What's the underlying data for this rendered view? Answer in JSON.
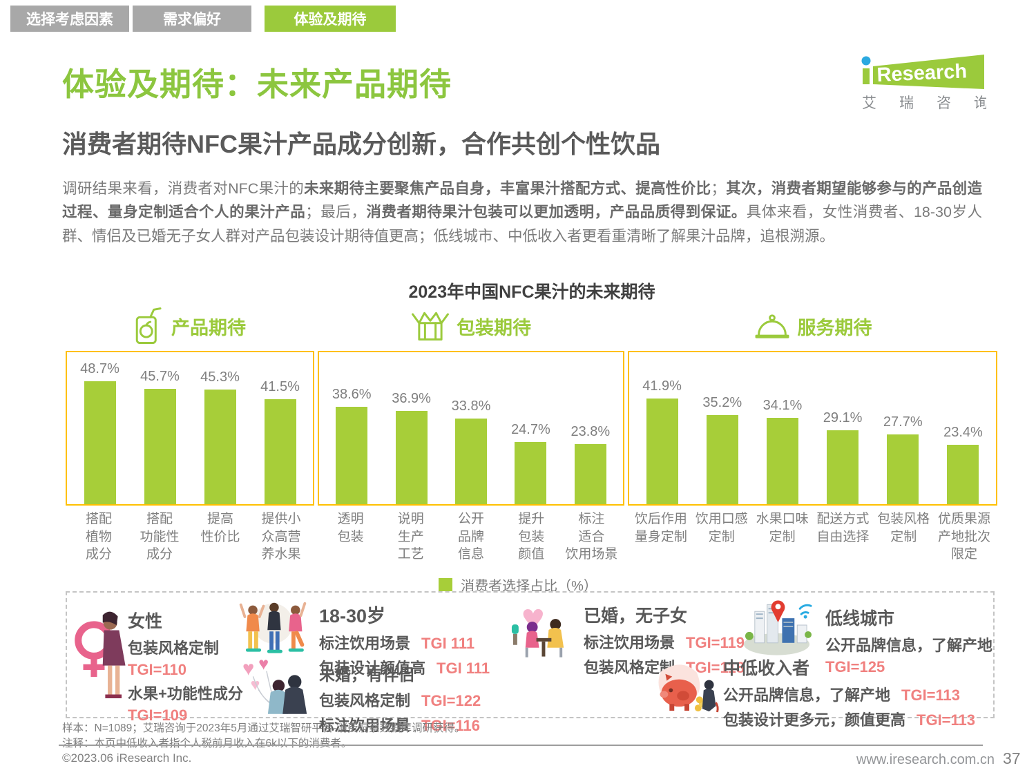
{
  "tabs": [
    {
      "label": "选择考虑因素",
      "active": false
    },
    {
      "label": "需求偏好",
      "active": false
    },
    {
      "label": "体验及期待",
      "active": true
    }
  ],
  "logo": {
    "brand_en": "Research",
    "brand_cn": "艾瑞咨询"
  },
  "header": {
    "title": "体验及期待：未来产品期待",
    "subtitle": "消费者期待NFC果汁产品成分创新，合作共创个性饮品"
  },
  "body": {
    "segments": [
      {
        "text": "调研结果来看，消费者对NFC果汁的",
        "bold": false
      },
      {
        "text": "未来期待主要聚焦产品自身，丰富果汁搭配方式、提高性价比",
        "bold": true
      },
      {
        "text": "；",
        "bold": false
      },
      {
        "text": "其次，消费者期望能够参与的产品创造过程、量身定制适合个人的果汁产品",
        "bold": true
      },
      {
        "text": "；最后，",
        "bold": false
      },
      {
        "text": "消费者期待果汁包装可以更加透明，产品品质得到保证。",
        "bold": true
      },
      {
        "text": "具体来看，女性消费者、18-30岁人群、情侣及已婚无子女人群对产品包装设计期待值更高；低线城市、中低收入者更看重清晰了解果汁品牌，追根溯源。",
        "bold": false
      }
    ]
  },
  "chart_data": {
    "type": "bar",
    "title": "2023年中国NFC果汁的未来期待",
    "legend": "消费者选择占比（%）",
    "unit": "%",
    "ylim": [
      0,
      60
    ],
    "grid": false,
    "bar_color": "#a7ce39",
    "groups": [
      {
        "name": "产品期待",
        "icon": "juice-box-icon",
        "categories": [
          "搭配\n植物\n成分",
          "搭配\n功能性\n成分",
          "提高\n性价比",
          "提供小\n众高营\n养水果"
        ],
        "values": [
          48.7,
          45.7,
          45.3,
          41.5
        ]
      },
      {
        "name": "包装期待",
        "icon": "open-box-icon",
        "categories": [
          "透明\n包装",
          "说明\n生产\n工艺",
          "公开\n品牌\n信息",
          "提升\n包装\n颜值",
          "标注\n适合\n饮用场景"
        ],
        "values": [
          38.6,
          36.9,
          33.8,
          24.7,
          23.8
        ]
      },
      {
        "name": "服务期待",
        "icon": "cloche-icon",
        "categories": [
          "饮后作用\n量身定制",
          "饮用口感\n定制",
          "水果口味\n定制",
          "配送方式\n自由选择",
          "包装风格\n定制",
          "优质果源\n产地批次\n限定"
        ],
        "values": [
          41.9,
          35.2,
          34.1,
          29.1,
          27.7,
          23.4
        ]
      }
    ]
  },
  "personas": {
    "female": {
      "title": "女性",
      "r1_label": "包装风格定制",
      "r1_tgi": "TGI=110",
      "r2_label": "水果+功能性成分",
      "r2_tgi": "TGI=109"
    },
    "age_18_30": {
      "title": "18-30岁",
      "r1_label": "标注饮用场景",
      "r1_tgi": "TGI 111",
      "r2_label": "包装设计颜值高",
      "r2_tgi": "TGI 111"
    },
    "unmarried": {
      "title": "未婚，有伴侣",
      "r1_label": "包装风格定制",
      "r1_tgi": "TGI=122",
      "r2_label": "标注饮用场景",
      "r2_tgi": "TGI=116"
    },
    "married": {
      "title": "已婚，无子女",
      "r1_label": "标注饮用场景",
      "r1_tgi": "TGI=119",
      "r2_label": "包装风格定制",
      "r2_tgi": "TGI=118"
    },
    "low_tier_city": {
      "title": "低线城市",
      "r1_label": "公开品牌信息，了解产地",
      "r1_tgi": "TGI=125"
    },
    "low_income": {
      "title": "中低收入者",
      "r1_label": "公开品牌信息，了解产地",
      "r1_tgi": "TGI=113",
      "r2_label": "包装设计更多元，颜值更高",
      "r2_tgi": "TGI=113"
    }
  },
  "footer": {
    "note1": "样本：N=1089；艾瑞咨询于2023年5月通过艾瑞智研平台-消费洞察数据库调研获得。",
    "note2": "注释：本页中低收入者指个人税前月收入在6k以下的消费者。",
    "copyright": "©2023.06 iResearch Inc.",
    "website": "www.iresearch.com.cn",
    "page_number": "37"
  },
  "colors": {
    "accent_green": "#9bca3c",
    "bar_green": "#a7ce39",
    "panel_border": "#ffc000",
    "tgi_pink": "#f0807f",
    "tab_inactive_gray": "#a8a8a8"
  }
}
